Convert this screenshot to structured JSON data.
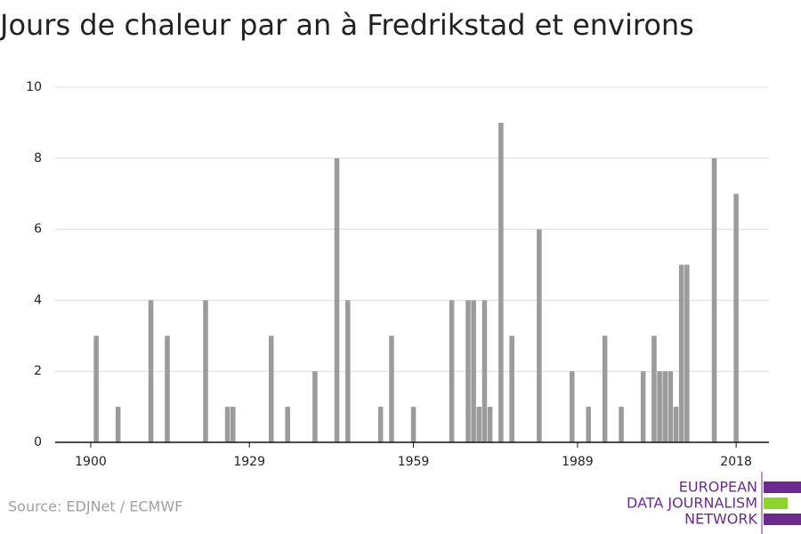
{
  "chart_data": {
    "type": "bar",
    "title": "Jours de chaleur par an à Fredrikstad et environs",
    "source": "Source: EDJNet / ECMWF",
    "logo": [
      "EUROPEAN",
      "DATA JOURNALISM",
      "NETWORK"
    ],
    "color": "#9b9b9b",
    "x": [
      1901,
      1905,
      1911,
      1914,
      1921,
      1925,
      1926,
      1933,
      1936,
      1941,
      1945,
      1947,
      1953,
      1955,
      1959,
      1966,
      1969,
      1970,
      1971,
      1972,
      1973,
      1975,
      1977,
      1982,
      1988,
      1991,
      1994,
      1997,
      2001,
      2003,
      2004,
      2005,
      2006,
      2007,
      2008,
      2009,
      2014,
      2018
    ],
    "values": [
      3,
      1,
      4,
      3,
      4,
      1,
      1,
      3,
      1,
      2,
      8,
      4,
      1,
      3,
      1,
      4,
      4,
      4,
      1,
      4,
      1,
      9,
      3,
      6,
      2,
      1,
      3,
      1,
      2,
      3,
      2,
      2,
      2,
      1,
      5,
      5,
      8,
      7
    ],
    "xlim": [
      1893.5,
      2024
    ],
    "xticks": [
      1900,
      1929,
      1959,
      1989,
      2018
    ],
    "ylim": [
      0,
      10
    ],
    "yticks": [
      0,
      2,
      4,
      6,
      8,
      10
    ],
    "grid": true
  }
}
